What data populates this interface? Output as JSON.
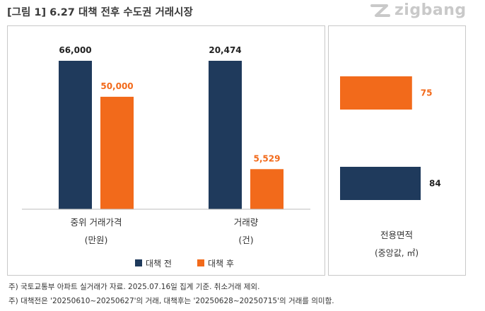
{
  "title": "[그림 1] 6.27 대책 전후 수도권 거래시장",
  "logo": {
    "text": "zigbang",
    "icon": "zigbang-z-logo"
  },
  "colors": {
    "before": "#1f3a5c",
    "after": "#f26a1b",
    "after_label": "#f26a1b",
    "before_label": "#222222"
  },
  "chart_data": [
    {
      "type": "bar",
      "orientation": "vertical",
      "series_names": [
        "대책 전",
        "대책 후"
      ],
      "groups": [
        {
          "label_line1": "중위 거래가격",
          "label_line2": "(만원)",
          "values": [
            66000,
            50000
          ],
          "value_labels": [
            "66,000",
            "50,000"
          ]
        },
        {
          "label_line1": "거래량",
          "label_line2": "(건)",
          "values": [
            20474,
            5529
          ],
          "value_labels": [
            "20,474",
            "5,529"
          ]
        }
      ],
      "legend": [
        {
          "label": "대책 전"
        },
        {
          "label": "대책 후"
        }
      ],
      "legend_position": "bottom"
    },
    {
      "type": "bar",
      "orientation": "horizontal",
      "series_names": [
        "대책 후",
        "대책 전"
      ],
      "values": [
        75,
        84
      ],
      "value_labels": [
        "75",
        "84"
      ],
      "label_line1": "전용면적",
      "label_line2": "(중앙값, ㎡)"
    }
  ],
  "footnotes": [
    "주) 국토교통부 아파트 실거래가 자료. 2025.07.16일 집계 기준. 취소거래 제외.",
    "주) 대책전은 '20250610~20250627'의 거래, 대책후는 '20250628~20250715'의 거래를 의미함."
  ]
}
